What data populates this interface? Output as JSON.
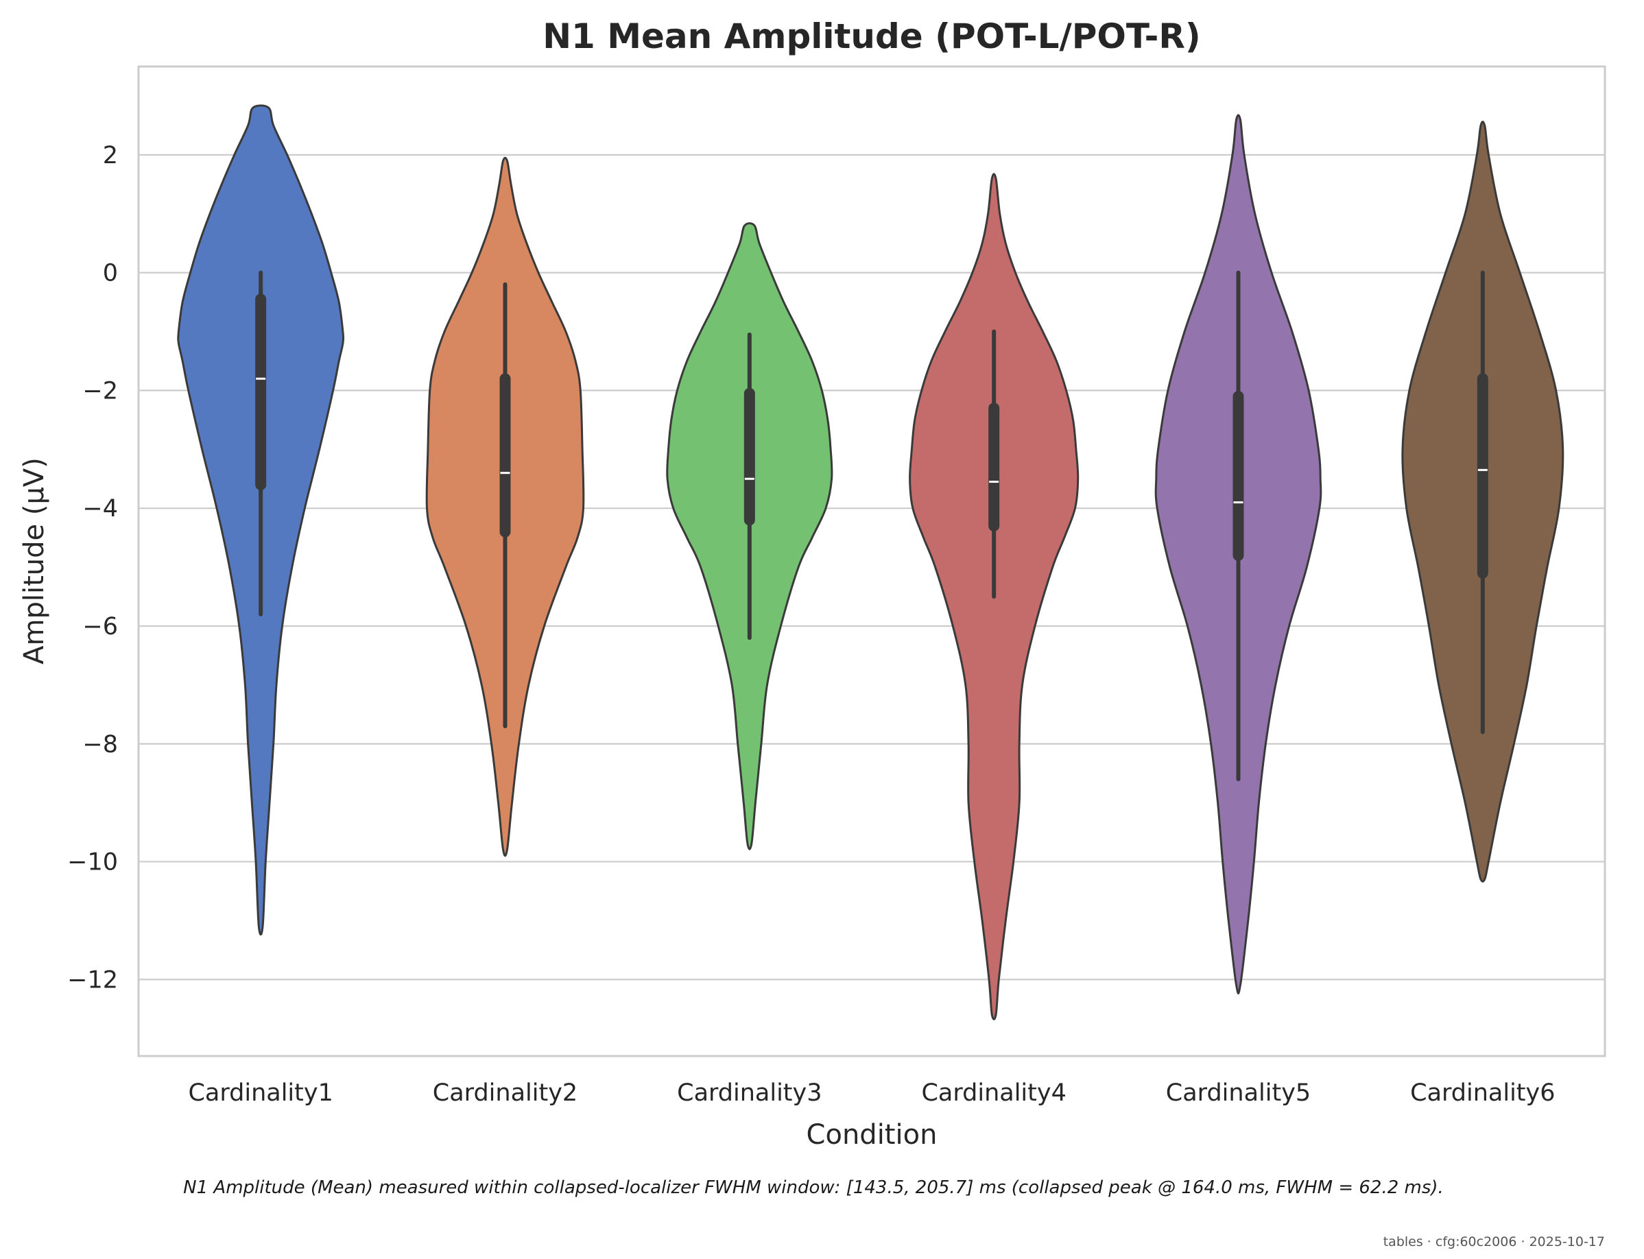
{
  "chart_data": {
    "type": "violin",
    "title": "N1 Mean Amplitude (POT-L/POT-R)",
    "xlabel": "Condition",
    "ylabel": "Amplitude (µV)",
    "ylim": [
      -13.3,
      3.5
    ],
    "yticks": [
      2,
      0,
      -2,
      -4,
      -6,
      -8,
      -10,
      -12
    ],
    "ytick_labels": [
      "2",
      "0",
      "−2",
      "−4",
      "−6",
      "−8",
      "−10",
      "−12"
    ],
    "grid": true,
    "categories": [
      "Cardinality1",
      "Cardinality2",
      "Cardinality3",
      "Cardinality4",
      "Cardinality5",
      "Cardinality6"
    ],
    "colors": [
      "#5579C0",
      "#D88860",
      "#73C171",
      "#C46C6C",
      "#9374AD",
      "#81624A"
    ],
    "violins": [
      {
        "min": -11.1,
        "max": 2.8,
        "q1": -3.6,
        "median": -1.8,
        "q3": -0.45,
        "whisker_low": -5.8,
        "whisker_high": 0.0,
        "profile": [
          [
            2.8,
            0.08
          ],
          [
            2.5,
            0.13
          ],
          [
            2.0,
            0.27
          ],
          [
            1.5,
            0.4
          ],
          [
            1.0,
            0.52
          ],
          [
            0.5,
            0.63
          ],
          [
            0.0,
            0.72
          ],
          [
            -0.5,
            0.8
          ],
          [
            -1.0,
            0.84
          ],
          [
            -1.2,
            0.84
          ],
          [
            -1.5,
            0.8
          ],
          [
            -2.0,
            0.74
          ],
          [
            -3.0,
            0.6
          ],
          [
            -4.0,
            0.45
          ],
          [
            -5.0,
            0.32
          ],
          [
            -6.0,
            0.22
          ],
          [
            -7.0,
            0.16
          ],
          [
            -8.0,
            0.13
          ],
          [
            -9.0,
            0.09
          ],
          [
            -10.0,
            0.05
          ],
          [
            -11.1,
            0.02
          ]
        ]
      },
      {
        "min": -9.8,
        "max": 1.9,
        "q1": -4.4,
        "median": -3.4,
        "q3": -1.8,
        "whisker_low": -7.7,
        "whisker_high": -0.2,
        "profile": [
          [
            1.9,
            0.02
          ],
          [
            1.5,
            0.06
          ],
          [
            1.0,
            0.12
          ],
          [
            0.5,
            0.22
          ],
          [
            0.0,
            0.34
          ],
          [
            -0.5,
            0.48
          ],
          [
            -1.0,
            0.62
          ],
          [
            -1.5,
            0.72
          ],
          [
            -2.0,
            0.77
          ],
          [
            -3.0,
            0.79
          ],
          [
            -4.0,
            0.8
          ],
          [
            -4.5,
            0.74
          ],
          [
            -5.0,
            0.62
          ],
          [
            -6.0,
            0.4
          ],
          [
            -7.0,
            0.24
          ],
          [
            -8.0,
            0.14
          ],
          [
            -9.0,
            0.07
          ],
          [
            -9.8,
            0.02
          ]
        ]
      },
      {
        "min": -9.7,
        "max": 0.8,
        "q1": -4.2,
        "median": -3.5,
        "q3": -2.05,
        "whisker_low": -6.2,
        "whisker_high": -1.05,
        "profile": [
          [
            0.8,
            0.05
          ],
          [
            0.5,
            0.1
          ],
          [
            0.0,
            0.22
          ],
          [
            -0.5,
            0.35
          ],
          [
            -1.0,
            0.5
          ],
          [
            -1.5,
            0.64
          ],
          [
            -2.0,
            0.74
          ],
          [
            -2.5,
            0.8
          ],
          [
            -3.0,
            0.83
          ],
          [
            -3.5,
            0.84
          ],
          [
            -4.0,
            0.78
          ],
          [
            -4.5,
            0.64
          ],
          [
            -5.0,
            0.5
          ],
          [
            -6.0,
            0.32
          ],
          [
            -7.0,
            0.18
          ],
          [
            -8.0,
            0.12
          ],
          [
            -9.0,
            0.06
          ],
          [
            -9.7,
            0.02
          ]
        ]
      },
      {
        "min": -12.6,
        "max": 1.6,
        "q1": -4.3,
        "median": -3.55,
        "q3": -2.3,
        "whisker_low": -5.5,
        "whisker_high": -1.0,
        "profile": [
          [
            1.6,
            0.02
          ],
          [
            1.0,
            0.06
          ],
          [
            0.5,
            0.12
          ],
          [
            0.0,
            0.22
          ],
          [
            -0.5,
            0.35
          ],
          [
            -1.0,
            0.5
          ],
          [
            -1.5,
            0.64
          ],
          [
            -2.0,
            0.74
          ],
          [
            -2.5,
            0.81
          ],
          [
            -3.0,
            0.84
          ],
          [
            -3.5,
            0.86
          ],
          [
            -4.0,
            0.83
          ],
          [
            -4.5,
            0.72
          ],
          [
            -5.0,
            0.6
          ],
          [
            -6.0,
            0.42
          ],
          [
            -7.0,
            0.29
          ],
          [
            -8.0,
            0.26
          ],
          [
            -9.0,
            0.26
          ],
          [
            -10.0,
            0.2
          ],
          [
            -11.0,
            0.12
          ],
          [
            -12.0,
            0.05
          ],
          [
            -12.6,
            0.02
          ]
        ]
      },
      {
        "min": -12.1,
        "max": 2.6,
        "q1": -4.8,
        "median": -3.9,
        "q3": -2.1,
        "whisker_low": -8.6,
        "whisker_high": 0.0,
        "profile": [
          [
            2.6,
            0.02
          ],
          [
            2.0,
            0.06
          ],
          [
            1.0,
            0.17
          ],
          [
            0.0,
            0.34
          ],
          [
            -1.0,
            0.55
          ],
          [
            -2.0,
            0.72
          ],
          [
            -3.0,
            0.82
          ],
          [
            -3.5,
            0.84
          ],
          [
            -4.0,
            0.83
          ],
          [
            -5.0,
            0.7
          ],
          [
            -6.0,
            0.52
          ],
          [
            -7.0,
            0.38
          ],
          [
            -8.0,
            0.28
          ],
          [
            -9.0,
            0.21
          ],
          [
            -10.0,
            0.16
          ],
          [
            -11.0,
            0.1
          ],
          [
            -12.1,
            0.02
          ]
        ]
      },
      {
        "min": -10.3,
        "max": 2.5,
        "q1": -5.1,
        "median": -3.35,
        "q3": -1.8,
        "whisker_low": -7.8,
        "whisker_high": 0.0,
        "profile": [
          [
            2.5,
            0.02
          ],
          [
            2.0,
            0.06
          ],
          [
            1.0,
            0.18
          ],
          [
            0.0,
            0.38
          ],
          [
            -1.0,
            0.58
          ],
          [
            -2.0,
            0.75
          ],
          [
            -3.0,
            0.82
          ],
          [
            -4.0,
            0.78
          ],
          [
            -5.0,
            0.66
          ],
          [
            -6.0,
            0.55
          ],
          [
            -7.0,
            0.45
          ],
          [
            -8.0,
            0.32
          ],
          [
            -9.0,
            0.18
          ],
          [
            -10.0,
            0.06
          ],
          [
            -10.3,
            0.02
          ]
        ]
      }
    ],
    "caption": "N1 Amplitude (Mean) measured within collapsed-localizer FWHM window: [143.5, 205.7] ms (collapsed peak @ 164.0 ms, FWHM = 62.2 ms).",
    "footer": "tables · cfg:60c2006 · 2025-10-17"
  }
}
